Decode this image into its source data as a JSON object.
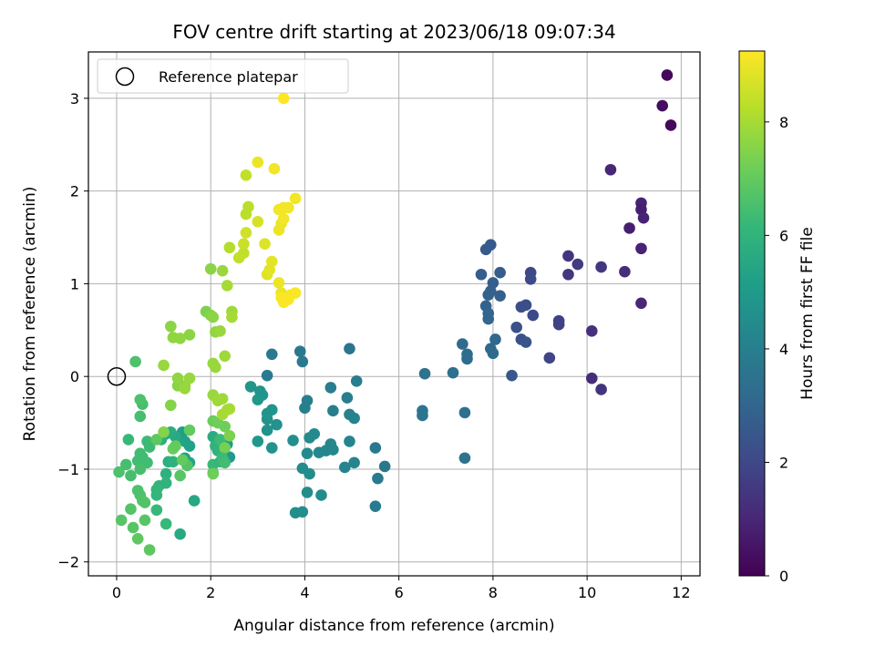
{
  "chart_data": {
    "type": "scatter",
    "title": "FOV centre drift starting at 2023/06/18 09:07:34",
    "xlabel": "Angular distance from reference (arcmin)",
    "ylabel": "Rotation from reference (arcmin)",
    "xlim": [
      -0.6,
      12.4
    ],
    "ylim": [
      -2.15,
      3.5
    ],
    "xticks": [
      0,
      2,
      4,
      6,
      8,
      10,
      12
    ],
    "yticks": [
      -2,
      -1,
      0,
      1,
      2,
      3
    ],
    "grid": true,
    "legend": {
      "placement": "upper-left",
      "entries": [
        "Reference platepar"
      ]
    },
    "reference_point": {
      "x": 0,
      "y": 0,
      "label": "Reference platepar"
    },
    "colorbar": {
      "label": "Hours from first FF file",
      "range": [
        0,
        9.25
      ],
      "ticks": [
        0,
        2,
        4,
        6,
        8
      ],
      "colormap": "viridis",
      "stops": [
        "#440154",
        "#482878",
        "#3e4a89",
        "#31688e",
        "#26828e",
        "#1f9e89",
        "#35b779",
        "#6ece58",
        "#b5de2b",
        "#fde725"
      ]
    },
    "points": [
      [
        11.7,
        3.25,
        0.2
      ],
      [
        11.6,
        2.92,
        0.3
      ],
      [
        11.78,
        2.71,
        0.25
      ],
      [
        10.5,
        2.23,
        1.0
      ],
      [
        11.15,
        1.87,
        0.9
      ],
      [
        11.15,
        1.8,
        0.8
      ],
      [
        11.2,
        1.71,
        0.9
      ],
      [
        10.9,
        1.6,
        0.8
      ],
      [
        11.15,
        1.38,
        0.9
      ],
      [
        10.8,
        1.13,
        1.2
      ],
      [
        10.3,
        1.18,
        1.5
      ],
      [
        9.6,
        1.3,
        1.4
      ],
      [
        9.8,
        1.21,
        1.6
      ],
      [
        9.6,
        1.1,
        1.5
      ],
      [
        11.15,
        0.79,
        1.0
      ],
      [
        10.1,
        0.49,
        1.3
      ],
      [
        10.1,
        -0.02,
        1.2
      ],
      [
        10.3,
        -0.14,
        1.4
      ],
      [
        9.4,
        0.6,
        1.8
      ],
      [
        9.4,
        0.56,
        1.8
      ],
      [
        9.2,
        0.2,
        1.9
      ],
      [
        8.8,
        1.12,
        2.0
      ],
      [
        8.8,
        1.05,
        2.1
      ],
      [
        8.7,
        0.77,
        2.2
      ],
      [
        8.6,
        0.75,
        2.2
      ],
      [
        8.85,
        0.66,
        2.1
      ],
      [
        8.5,
        0.53,
        2.3
      ],
      [
        8.6,
        0.4,
        2.3
      ],
      [
        8.7,
        0.37,
        2.4
      ],
      [
        8.4,
        0.01,
        2.5
      ],
      [
        7.95,
        1.42,
        2.6
      ],
      [
        7.85,
        1.37,
        2.6
      ],
      [
        8.15,
        1.12,
        2.7
      ],
      [
        7.75,
        1.1,
        2.7
      ],
      [
        8.0,
        1.01,
        2.8
      ],
      [
        7.95,
        0.92,
        2.8
      ],
      [
        8.15,
        0.87,
        2.8
      ],
      [
        7.9,
        0.88,
        2.9
      ],
      [
        7.85,
        0.76,
        2.9
      ],
      [
        7.9,
        0.68,
        3.0
      ],
      [
        7.9,
        0.62,
        3.0
      ],
      [
        8.05,
        0.4,
        3.1
      ],
      [
        7.95,
        0.3,
        3.1
      ],
      [
        8.0,
        0.25,
        3.2
      ],
      [
        7.35,
        0.35,
        3.2
      ],
      [
        7.45,
        0.24,
        3.3
      ],
      [
        7.45,
        0.19,
        3.3
      ],
      [
        7.15,
        0.04,
        3.4
      ],
      [
        7.4,
        -0.39,
        3.4
      ],
      [
        7.4,
        -0.88,
        3.5
      ],
      [
        6.55,
        0.03,
        3.5
      ],
      [
        6.5,
        -0.37,
        3.6
      ],
      [
        6.5,
        -0.42,
        3.6
      ],
      [
        4.95,
        0.3,
        3.6
      ],
      [
        3.9,
        0.27,
        3.7
      ],
      [
        3.3,
        0.24,
        3.8
      ],
      [
        3.2,
        0.01,
        3.8
      ],
      [
        3.95,
        0.16,
        3.8
      ],
      [
        5.1,
        -0.05,
        3.9
      ],
      [
        4.55,
        -0.12,
        3.9
      ],
      [
        4.9,
        -0.23,
        3.9
      ],
      [
        4.05,
        -0.26,
        4.0
      ],
      [
        4.0,
        -0.34,
        4.0
      ],
      [
        4.6,
        -0.37,
        4.0
      ],
      [
        4.95,
        -0.41,
        4.1
      ],
      [
        5.05,
        -0.45,
        4.1
      ],
      [
        5.7,
        -0.97,
        3.7
      ],
      [
        5.5,
        -0.77,
        3.7
      ],
      [
        5.55,
        -1.1,
        3.8
      ],
      [
        5.5,
        -1.4,
        3.8
      ],
      [
        4.95,
        -0.7,
        4.2
      ],
      [
        5.05,
        -0.93,
        4.2
      ],
      [
        4.85,
        -0.98,
        4.2
      ],
      [
        4.55,
        -0.73,
        4.3
      ],
      [
        4.6,
        -0.79,
        4.3
      ],
      [
        4.45,
        -0.8,
        4.3
      ],
      [
        4.3,
        -0.82,
        4.3
      ],
      [
        4.2,
        -0.62,
        4.4
      ],
      [
        4.1,
        -0.66,
        4.4
      ],
      [
        4.05,
        -0.83,
        4.4
      ],
      [
        3.95,
        -0.99,
        4.5
      ],
      [
        4.1,
        -1.05,
        4.5
      ],
      [
        4.05,
        -1.25,
        4.5
      ],
      [
        4.35,
        -1.28,
        4.5
      ],
      [
        3.8,
        -1.47,
        4.6
      ],
      [
        3.95,
        -1.46,
        4.6
      ],
      [
        3.75,
        -0.69,
        4.6
      ],
      [
        3.3,
        -0.77,
        4.7
      ],
      [
        3.4,
        -0.52,
        4.7
      ],
      [
        3.2,
        -0.58,
        4.7
      ],
      [
        3.2,
        -0.46,
        4.7
      ],
      [
        3.3,
        -0.36,
        4.8
      ],
      [
        3.2,
        -0.4,
        4.8
      ],
      [
        3.05,
        -0.16,
        4.8
      ],
      [
        3.1,
        -0.2,
        4.8
      ],
      [
        2.85,
        -0.11,
        4.9
      ],
      [
        3.0,
        -0.25,
        4.9
      ],
      [
        3.0,
        -0.7,
        4.9
      ],
      [
        2.4,
        -0.87,
        5.0
      ],
      [
        2.35,
        -0.73,
        5.1
      ],
      [
        1.4,
        -0.6,
        5.2
      ],
      [
        1.45,
        -0.7,
        5.3
      ],
      [
        1.55,
        -0.75,
        5.3
      ],
      [
        1.45,
        -0.88,
        5.4
      ],
      [
        1.55,
        -0.93,
        5.4
      ],
      [
        1.65,
        -1.34,
        5.5
      ],
      [
        1.35,
        -1.7,
        5.6
      ],
      [
        1.25,
        -0.65,
        5.6
      ],
      [
        1.15,
        -0.6,
        5.7
      ],
      [
        1.05,
        -0.62,
        5.7
      ],
      [
        0.95,
        -0.68,
        5.8
      ],
      [
        1.1,
        -0.92,
        5.8
      ],
      [
        1.2,
        -0.92,
        5.9
      ],
      [
        1.05,
        -1.05,
        5.9
      ],
      [
        1.05,
        -1.15,
        6.0
      ],
      [
        0.9,
        -1.18,
        6.0
      ],
      [
        0.85,
        -1.22,
        6.1
      ],
      [
        0.85,
        -1.28,
        6.1
      ],
      [
        0.85,
        -1.44,
        6.2
      ],
      [
        1.05,
        -1.59,
        6.2
      ],
      [
        0.65,
        -0.7,
        6.3
      ],
      [
        0.7,
        -0.76,
        6.3
      ],
      [
        0.55,
        -0.87,
        6.3
      ],
      [
        0.5,
        -0.83,
        6.4
      ],
      [
        0.45,
        -0.91,
        6.4
      ],
      [
        0.65,
        -0.93,
        6.4
      ],
      [
        0.5,
        -1.0,
        6.5
      ],
      [
        0.3,
        -1.07,
        6.5
      ],
      [
        0.2,
        -0.95,
        6.5
      ],
      [
        0.05,
        -1.03,
        6.6
      ],
      [
        0.45,
        -1.23,
        6.6
      ],
      [
        0.5,
        -1.28,
        6.6
      ],
      [
        0.55,
        -1.34,
        6.7
      ],
      [
        0.6,
        -1.36,
        6.7
      ],
      [
        0.3,
        -1.43,
        6.7
      ],
      [
        0.6,
        -1.55,
        6.8
      ],
      [
        0.1,
        -1.55,
        6.8
      ],
      [
        0.35,
        -1.63,
        6.8
      ],
      [
        0.45,
        -1.75,
        6.9
      ],
      [
        0.7,
        -1.87,
        6.9
      ],
      [
        0.25,
        -0.68,
        6.2
      ],
      [
        0.5,
        -0.43,
        6.5
      ],
      [
        0.55,
        -0.3,
        6.5
      ],
      [
        0.5,
        -0.25,
        6.6
      ],
      [
        2.05,
        -0.65,
        5.7
      ],
      [
        2.1,
        -0.75,
        6.0
      ],
      [
        2.15,
        -0.8,
        6.0
      ],
      [
        2.05,
        -0.95,
        6.2
      ],
      [
        2.05,
        -1.04,
        6.5
      ],
      [
        2.2,
        -0.92,
        6.1
      ],
      [
        1.5,
        -0.96,
        6.7
      ],
      [
        1.35,
        -1.07,
        6.8
      ],
      [
        2.2,
        -0.68,
        6.3
      ],
      [
        1.55,
        -0.58,
        7.0
      ],
      [
        1.4,
        -0.9,
        7.0
      ],
      [
        1.2,
        -0.78,
        7.1
      ],
      [
        2.05,
        -0.48,
        7.1
      ],
      [
        2.3,
        -0.54,
        7.2
      ],
      [
        2.15,
        -0.5,
        7.2
      ],
      [
        2.4,
        -0.64,
        7.4
      ],
      [
        2.3,
        -0.77,
        7.3
      ],
      [
        2.05,
        -1.05,
        7.2
      ],
      [
        2.25,
        -0.88,
        6.3
      ],
      [
        2.3,
        -0.93,
        6.4
      ],
      [
        0.4,
        0.16,
        6.6
      ],
      [
        0.85,
        -0.68,
        6.9
      ],
      [
        1.25,
        -0.75,
        7.0
      ],
      [
        1.0,
        -0.6,
        7.5
      ],
      [
        1.15,
        -0.31,
        7.5
      ],
      [
        1.3,
        -0.1,
        7.6
      ],
      [
        1.3,
        -0.02,
        7.7
      ],
      [
        1.45,
        -0.1,
        7.7
      ],
      [
        1.55,
        -0.02,
        7.8
      ],
      [
        1.45,
        -0.13,
        7.8
      ],
      [
        1.0,
        0.12,
        7.8
      ],
      [
        2.05,
        0.14,
        7.8
      ],
      [
        2.1,
        0.1,
        7.8
      ],
      [
        2.3,
        0.22,
        7.9
      ],
      [
        2.05,
        -0.2,
        7.8
      ],
      [
        2.15,
        -0.26,
        7.9
      ],
      [
        2.25,
        -0.24,
        7.9
      ],
      [
        2.35,
        -0.36,
        8.0
      ],
      [
        2.4,
        -0.35,
        8.0
      ],
      [
        2.25,
        -0.41,
        8.0
      ],
      [
        1.15,
        0.54,
        7.6
      ],
      [
        1.2,
        0.42,
        7.7
      ],
      [
        1.35,
        0.41,
        7.7
      ],
      [
        1.55,
        0.45,
        7.6
      ],
      [
        1.9,
        0.7,
        7.4
      ],
      [
        2.0,
        0.66,
        7.5
      ],
      [
        2.05,
        0.64,
        7.6
      ],
      [
        2.1,
        0.48,
        7.7
      ],
      [
        2.2,
        0.49,
        7.8
      ],
      [
        2.45,
        0.7,
        7.9
      ],
      [
        2.45,
        0.64,
        8.0
      ],
      [
        2.35,
        0.98,
        8.0
      ],
      [
        2.0,
        1.16,
        7.6
      ],
      [
        2.25,
        1.14,
        7.8
      ],
      [
        2.4,
        1.39,
        8.2
      ],
      [
        2.6,
        1.28,
        8.4
      ],
      [
        2.7,
        1.33,
        8.4
      ],
      [
        2.7,
        1.43,
        8.5
      ],
      [
        2.75,
        1.55,
        8.6
      ],
      [
        2.75,
        1.75,
        8.3
      ],
      [
        2.8,
        1.83,
        8.3
      ],
      [
        2.75,
        2.17,
        8.4
      ],
      [
        3.0,
        1.67,
        8.7
      ],
      [
        3.15,
        1.43,
        8.8
      ],
      [
        3.0,
        2.31,
        9.0
      ],
      [
        3.35,
        2.24,
        9.1
      ],
      [
        3.2,
        1.1,
        8.8
      ],
      [
        3.25,
        1.15,
        8.9
      ],
      [
        3.3,
        1.24,
        8.9
      ],
      [
        3.45,
        1.01,
        9.0
      ],
      [
        3.5,
        0.9,
        9.0
      ],
      [
        3.45,
        1.58,
        9.0
      ],
      [
        3.5,
        1.65,
        9.0
      ],
      [
        3.55,
        1.7,
        9.1
      ],
      [
        3.45,
        1.8,
        9.1
      ],
      [
        3.55,
        1.82,
        9.1
      ],
      [
        3.65,
        1.82,
        9.1
      ],
      [
        3.8,
        1.92,
        9.1
      ],
      [
        3.5,
        0.85,
        9.2
      ],
      [
        3.55,
        0.8,
        9.2
      ],
      [
        3.65,
        0.83,
        9.2
      ],
      [
        3.7,
        0.88,
        9.2
      ],
      [
        3.8,
        0.9,
        9.2
      ],
      [
        3.55,
        3.0,
        9.25
      ]
    ]
  }
}
